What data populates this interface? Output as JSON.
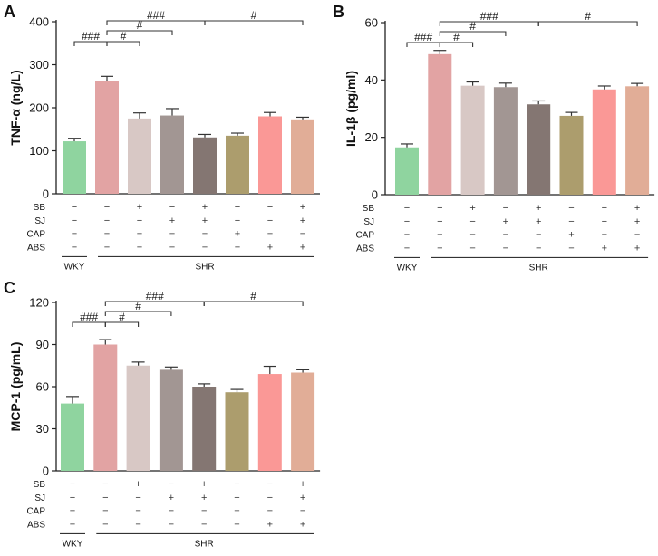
{
  "chart_data": [
    {
      "type": "bar",
      "panel": "A",
      "ylabel": "TNF-α (ng/L)",
      "ylim": [
        0,
        400
      ],
      "yticks": [
        0,
        100,
        200,
        300,
        400
      ],
      "categories": [
        "WKY",
        "SHR",
        "SHR+SB",
        "SHR+SJ",
        "SHR+SB+SJ",
        "SHR+CAP",
        "SHR+ABS",
        "SHR+SB+SJ+ABS"
      ],
      "values": [
        122,
        262,
        175,
        182,
        131,
        135,
        180,
        173
      ],
      "errors": [
        7,
        11,
        13,
        16,
        7,
        6,
        9,
        5
      ],
      "colors": [
        "#8fd49f",
        "#e2a3a3",
        "#d8c8c5",
        "#a29693",
        "#847672",
        "#ac9d6d",
        "#fa9896",
        "#e1ad97"
      ],
      "brackets": [
        {
          "from": 0,
          "to": 1,
          "label": "###",
          "level": 0
        },
        {
          "from": 1,
          "to": 2,
          "label": "#",
          "level": 0
        },
        {
          "from": 1,
          "to": 3,
          "label": "#",
          "level": 1
        },
        {
          "from": 1,
          "to": 4,
          "label": "###",
          "level": 2
        },
        {
          "from": 4,
          "to": 7,
          "label": "#",
          "level": 2
        }
      ]
    },
    {
      "type": "bar",
      "panel": "B",
      "ylabel": "IL-1β (pg/ml)",
      "ylim": [
        0,
        60
      ],
      "yticks": [
        0,
        20,
        40,
        60
      ],
      "categories": [
        "WKY",
        "SHR",
        "SHR+SB",
        "SHR+SJ",
        "SHR+SB+SJ",
        "SHR+CAP",
        "SHR+ABS",
        "SHR+SB+SJ+ABS"
      ],
      "values": [
        16.5,
        49,
        38,
        37.5,
        31.5,
        27.5,
        36.7,
        37.8
      ],
      "errors": [
        1.2,
        1.3,
        1.3,
        1.4,
        1.2,
        1.2,
        1.2,
        1.0
      ],
      "colors": [
        "#8fd49f",
        "#e2a3a3",
        "#d8c8c5",
        "#a29693",
        "#847672",
        "#ac9d6d",
        "#fa9896",
        "#e1ad97"
      ],
      "brackets": [
        {
          "from": 0,
          "to": 1,
          "label": "###",
          "level": 0
        },
        {
          "from": 1,
          "to": 2,
          "label": "#",
          "level": 0
        },
        {
          "from": 1,
          "to": 3,
          "label": "#",
          "level": 1
        },
        {
          "from": 1,
          "to": 4,
          "label": "###",
          "level": 2
        },
        {
          "from": 4,
          "to": 7,
          "label": "#",
          "level": 2
        }
      ]
    },
    {
      "type": "bar",
      "panel": "C",
      "ylabel": "MCP-1 (pg/mL)",
      "ylim": [
        0,
        120
      ],
      "yticks": [
        0,
        30,
        60,
        90,
        120
      ],
      "categories": [
        "WKY",
        "SHR",
        "SHR+SB",
        "SHR+SJ",
        "SHR+SB+SJ",
        "SHR+CAP",
        "SHR+ABS",
        "SHR+SB+SJ+ABS"
      ],
      "values": [
        48,
        90,
        75,
        72,
        60,
        56,
        69,
        70
      ],
      "errors": [
        5,
        3.5,
        2.5,
        2,
        2,
        2,
        5.5,
        2
      ],
      "colors": [
        "#8fd49f",
        "#e2a3a3",
        "#d8c8c5",
        "#a29693",
        "#847672",
        "#ac9d6d",
        "#fa9896",
        "#e1ad97"
      ],
      "brackets": [
        {
          "from": 0,
          "to": 1,
          "label": "###",
          "level": 0
        },
        {
          "from": 1,
          "to": 2,
          "label": "#",
          "level": 0
        },
        {
          "from": 1,
          "to": 3,
          "label": "#",
          "level": 1
        },
        {
          "from": 1,
          "to": 4,
          "label": "###",
          "level": 2
        },
        {
          "from": 4,
          "to": 7,
          "label": "#",
          "level": 2
        }
      ]
    }
  ],
  "treatment_table": {
    "rows": [
      {
        "label": "SB",
        "signs": [
          "−",
          "−",
          "+",
          "−",
          "+",
          "−",
          "−",
          "+"
        ]
      },
      {
        "label": "SJ",
        "signs": [
          "−",
          "−",
          "−",
          "+",
          "+",
          "−",
          "−",
          "+"
        ]
      },
      {
        "label": "CAP",
        "signs": [
          "−",
          "−",
          "−",
          "−",
          "−",
          "+",
          "−",
          "−"
        ]
      },
      {
        "label": "ABS",
        "signs": [
          "−",
          "−",
          "−",
          "−",
          "−",
          "−",
          "+",
          "+"
        ]
      }
    ],
    "groups": [
      "WKY",
      "SHR"
    ]
  }
}
